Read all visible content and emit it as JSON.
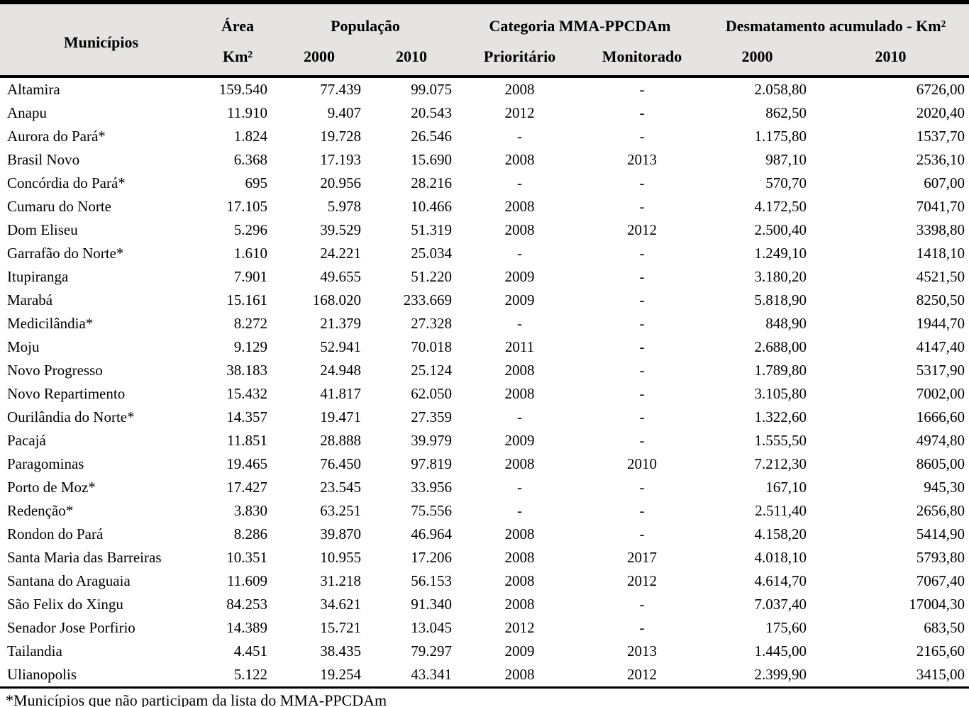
{
  "colors": {
    "header_bg": "#e6e4e3",
    "border": "#000000",
    "text": "#000000"
  },
  "table": {
    "header": {
      "municipios": "Municípios",
      "area_title": "Área",
      "area_unit": "Km²",
      "populacao_title": "População",
      "pop_2000": "2000",
      "pop_2010": "2010",
      "categoria_title": "Categoria MMA-PPCDAm",
      "prioritario": "Prioritário",
      "monitorado": "Monitorado",
      "desmatamento_title": "Desmatamento acumulado - Km²",
      "desmat_2000": "2000",
      "desmat_2010": "2010"
    },
    "columns": [
      "municipio",
      "area-km2",
      "populacao-2000",
      "populacao-2010",
      "prioritario",
      "monitorado",
      "desmatamento-2000",
      "desmatamento-2010"
    ],
    "rows": [
      [
        "Altamira",
        "159.540",
        "77.439",
        "99.075",
        "2008",
        "-",
        "2.058,80",
        "6726,00"
      ],
      [
        "Anapu",
        "11.910",
        "9.407",
        "20.543",
        "2012",
        "-",
        "862,50",
        "2020,40"
      ],
      [
        "Aurora do Pará*",
        "1.824",
        "19.728",
        "26.546",
        "-",
        "-",
        "1.175,80",
        "1537,70"
      ],
      [
        "Brasil Novo",
        "6.368",
        "17.193",
        "15.690",
        "2008",
        "2013",
        "987,10",
        "2536,10"
      ],
      [
        "Concórdia do Pará*",
        "695",
        "20.956",
        "28.216",
        "-",
        "-",
        "570,70",
        "607,00"
      ],
      [
        "Cumaru do Norte",
        "17.105",
        "5.978",
        "10.466",
        "2008",
        "-",
        "4.172,50",
        "7041,70"
      ],
      [
        "Dom Eliseu",
        "5.296",
        "39.529",
        "51.319",
        "2008",
        "2012",
        "2.500,40",
        "3398,80"
      ],
      [
        "Garrafão do Norte*",
        "1.610",
        "24.221",
        "25.034",
        "-",
        "-",
        "1.249,10",
        "1418,10"
      ],
      [
        "Itupiranga",
        "7.901",
        "49.655",
        "51.220",
        "2009",
        "-",
        "3.180,20",
        "4521,50"
      ],
      [
        "Marabá",
        "15.161",
        "168.020",
        "233.669",
        "2009",
        "-",
        "5.818,90",
        "8250,50"
      ],
      [
        "Medicilândia*",
        "8.272",
        "21.379",
        "27.328",
        "-",
        "-",
        "848,90",
        "1944,70"
      ],
      [
        "Moju",
        "9.129",
        "52.941",
        "70.018",
        "2011",
        "-",
        "2.688,00",
        "4147,40"
      ],
      [
        "Novo Progresso",
        "38.183",
        "24.948",
        "25.124",
        "2008",
        "-",
        "1.789,80",
        "5317,90"
      ],
      [
        "Novo Repartimento",
        "15.432",
        "41.817",
        "62.050",
        "2008",
        "-",
        "3.105,80",
        "7002,00"
      ],
      [
        "Ourilândia do Norte*",
        "14.357",
        "19.471",
        "27.359",
        "-",
        "-",
        "1.322,60",
        "1666,60"
      ],
      [
        "Pacajá",
        "11.851",
        "28.888",
        "39.979",
        "2009",
        "-",
        "1.555,50",
        "4974,80"
      ],
      [
        "Paragominas",
        "19.465",
        "76.450",
        "97.819",
        "2008",
        "2010",
        "7.212,30",
        "8605,00"
      ],
      [
        "Porto de Moz*",
        "17.427",
        "23.545",
        "33.956",
        "-",
        "-",
        "167,10",
        "945,30"
      ],
      [
        "Redenção*",
        "3.830",
        "63.251",
        "75.556",
        "-",
        "-",
        "2.511,40",
        "2656,80"
      ],
      [
        "Rondon do Pará",
        "8.286",
        "39.870",
        "46.964",
        "2008",
        "-",
        "4.158,20",
        "5414,90"
      ],
      [
        "Santa Maria das Barreiras",
        "10.351",
        "10.955",
        "17.206",
        "2008",
        "2017",
        "4.018,10",
        "5793,80"
      ],
      [
        "Santana do Araguaia",
        "11.609",
        "31.218",
        "56.153",
        "2008",
        "2012",
        "4.614,70",
        "7067,40"
      ],
      [
        "São Felix do Xingu",
        "84.253",
        "34.621",
        "91.340",
        "2008",
        "-",
        "7.037,40",
        "17004,30"
      ],
      [
        "Senador Jose Porfirio",
        "14.389",
        "15.721",
        "13.045",
        "2012",
        "-",
        "175,60",
        "683,50"
      ],
      [
        "Tailandia",
        "4.451",
        "38.435",
        "79.297",
        "2009",
        "2013",
        "1.445,00",
        "2165,60"
      ],
      [
        "Ulianopolis",
        "5.122",
        "19.254",
        "43.341",
        "2008",
        "2012",
        "2.399,90",
        "3415,00"
      ]
    ],
    "footnote": "*Municípios que não participam da lista do MMA-PPCDAm"
  }
}
